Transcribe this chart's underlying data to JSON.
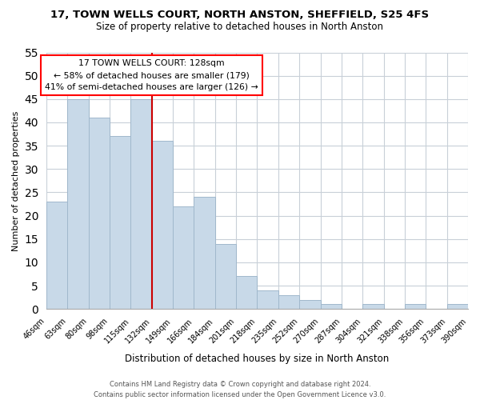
{
  "title": "17, TOWN WELLS COURT, NORTH ANSTON, SHEFFIELD, S25 4FS",
  "subtitle": "Size of property relative to detached houses in North Anston",
  "xlabel": "Distribution of detached houses by size in North Anston",
  "ylabel": "Number of detached properties",
  "bin_labels": [
    "46sqm",
    "63sqm",
    "80sqm",
    "98sqm",
    "115sqm",
    "132sqm",
    "149sqm",
    "166sqm",
    "184sqm",
    "201sqm",
    "218sqm",
    "235sqm",
    "252sqm",
    "270sqm",
    "287sqm",
    "304sqm",
    "321sqm",
    "338sqm",
    "356sqm",
    "373sqm",
    "390sqm"
  ],
  "bar_values": [
    23,
    45,
    41,
    37,
    45,
    36,
    22,
    24,
    14,
    7,
    4,
    3,
    2,
    1,
    0,
    1,
    0,
    1,
    0,
    1
  ],
  "bar_color": "#c8d9e8",
  "bar_edge_color": "#a0b8cc",
  "highlight_line_index": 5,
  "highlight_line_color": "#cc0000",
  "ylim": [
    0,
    55
  ],
  "yticks": [
    0,
    5,
    10,
    15,
    20,
    25,
    30,
    35,
    40,
    45,
    50,
    55
  ],
  "annotation_text_line1": "17 TOWN WELLS COURT: 128sqm",
  "annotation_text_line2": "← 58% of detached houses are smaller (179)",
  "annotation_text_line3": "41% of semi-detached houses are larger (126) →",
  "footer_line1": "Contains HM Land Registry data © Crown copyright and database right 2024.",
  "footer_line2": "Contains public sector information licensed under the Open Government Licence v3.0.",
  "background_color": "#ffffff",
  "grid_color": "#c8d0d8"
}
